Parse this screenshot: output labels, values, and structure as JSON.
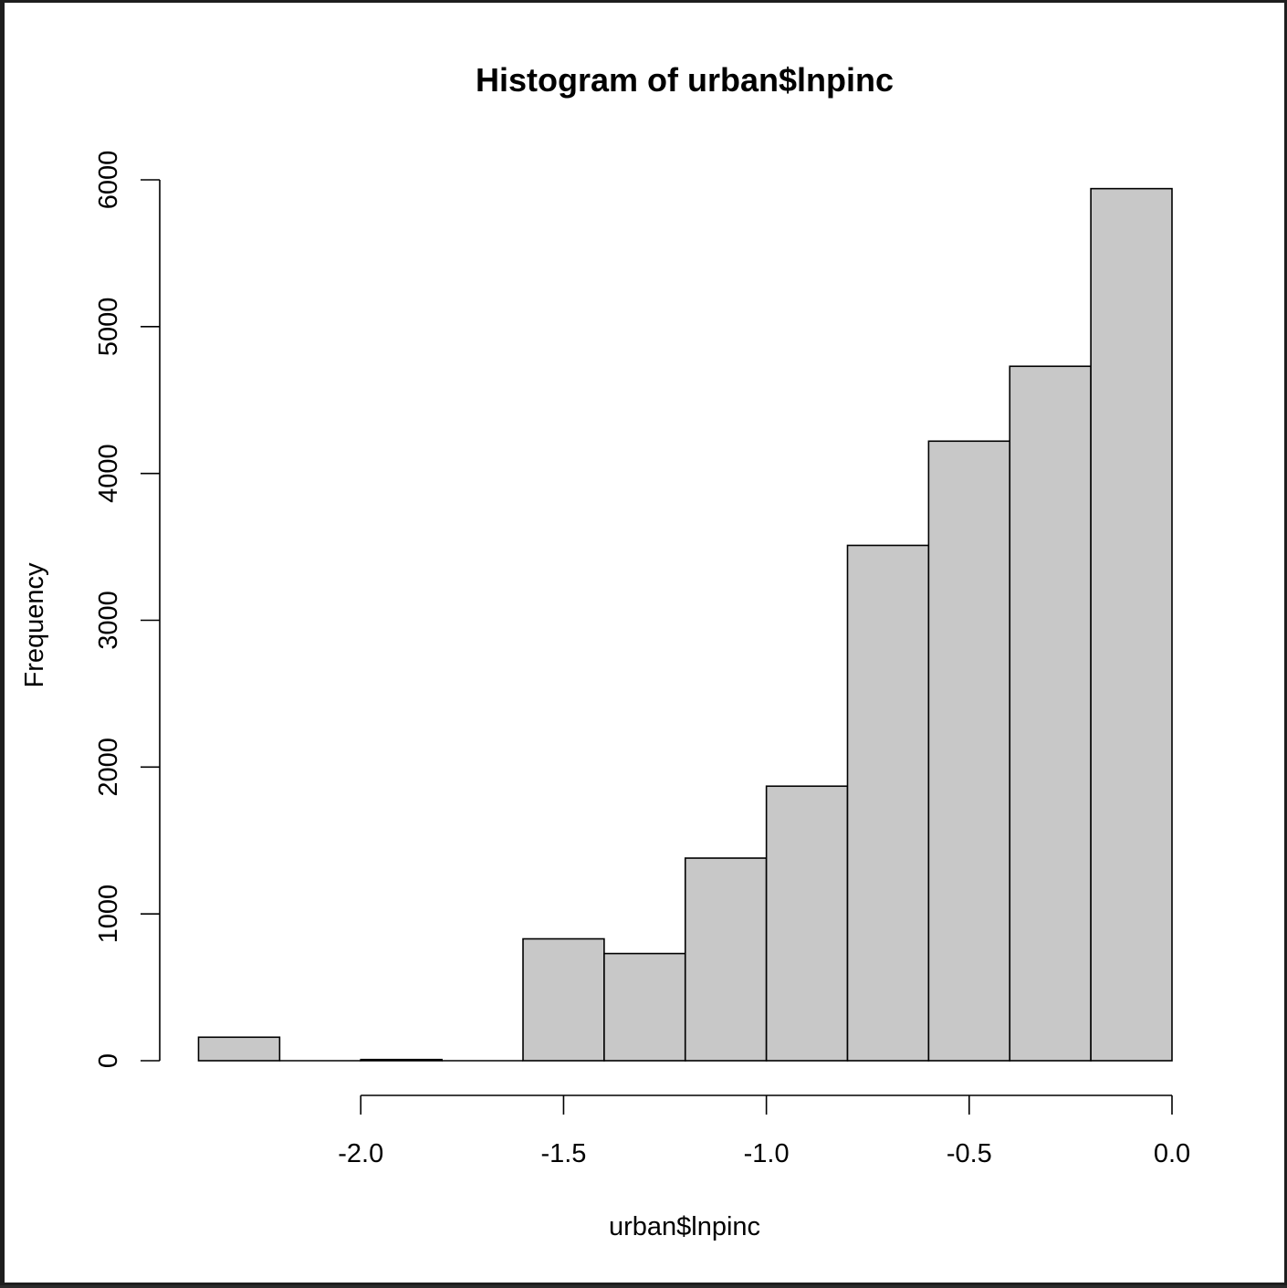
{
  "chart_data": {
    "type": "bar",
    "title": "Histogram of urban$lnpinc",
    "xlabel": "urban$lnpinc",
    "ylabel": "Frequency",
    "bins": [
      {
        "x0": -2.4,
        "x1": -2.2,
        "count": 160
      },
      {
        "x0": -2.2,
        "x1": -2.0,
        "count": 0
      },
      {
        "x0": -2.0,
        "x1": -1.8,
        "count": 8
      },
      {
        "x0": -1.8,
        "x1": -1.6,
        "count": 0
      },
      {
        "x0": -1.6,
        "x1": -1.4,
        "count": 830
      },
      {
        "x0": -1.4,
        "x1": -1.2,
        "count": 730
      },
      {
        "x0": -1.2,
        "x1": -1.0,
        "count": 1380
      },
      {
        "x0": -1.0,
        "x1": -0.8,
        "count": 1870
      },
      {
        "x0": -0.8,
        "x1": -0.6,
        "count": 3510
      },
      {
        "x0": -0.6,
        "x1": -0.4,
        "count": 4220
      },
      {
        "x0": -0.4,
        "x1": -0.2,
        "count": 4730
      },
      {
        "x0": -0.2,
        "x1": 0.0,
        "count": 5940
      }
    ],
    "x_ticks": [
      {
        "value": -2.0,
        "label": "-2.0"
      },
      {
        "value": -1.5,
        "label": "-1.5"
      },
      {
        "value": -1.0,
        "label": "-1.0"
      },
      {
        "value": -0.5,
        "label": "-0.5"
      },
      {
        "value": 0.0,
        "label": "0.0"
      }
    ],
    "y_ticks": [
      {
        "value": 0,
        "label": "0"
      },
      {
        "value": 1000,
        "label": "1000"
      },
      {
        "value": 2000,
        "label": "2000"
      },
      {
        "value": 3000,
        "label": "3000"
      },
      {
        "value": 4000,
        "label": "4000"
      },
      {
        "value": 5000,
        "label": "5000"
      },
      {
        "value": 6000,
        "label": "6000"
      }
    ],
    "xlim": [
      -2.4,
      0.0
    ],
    "ylim": [
      0,
      6000
    ],
    "grid": false,
    "bar_color": "#c8c8c8",
    "edge_color": "#000000"
  }
}
